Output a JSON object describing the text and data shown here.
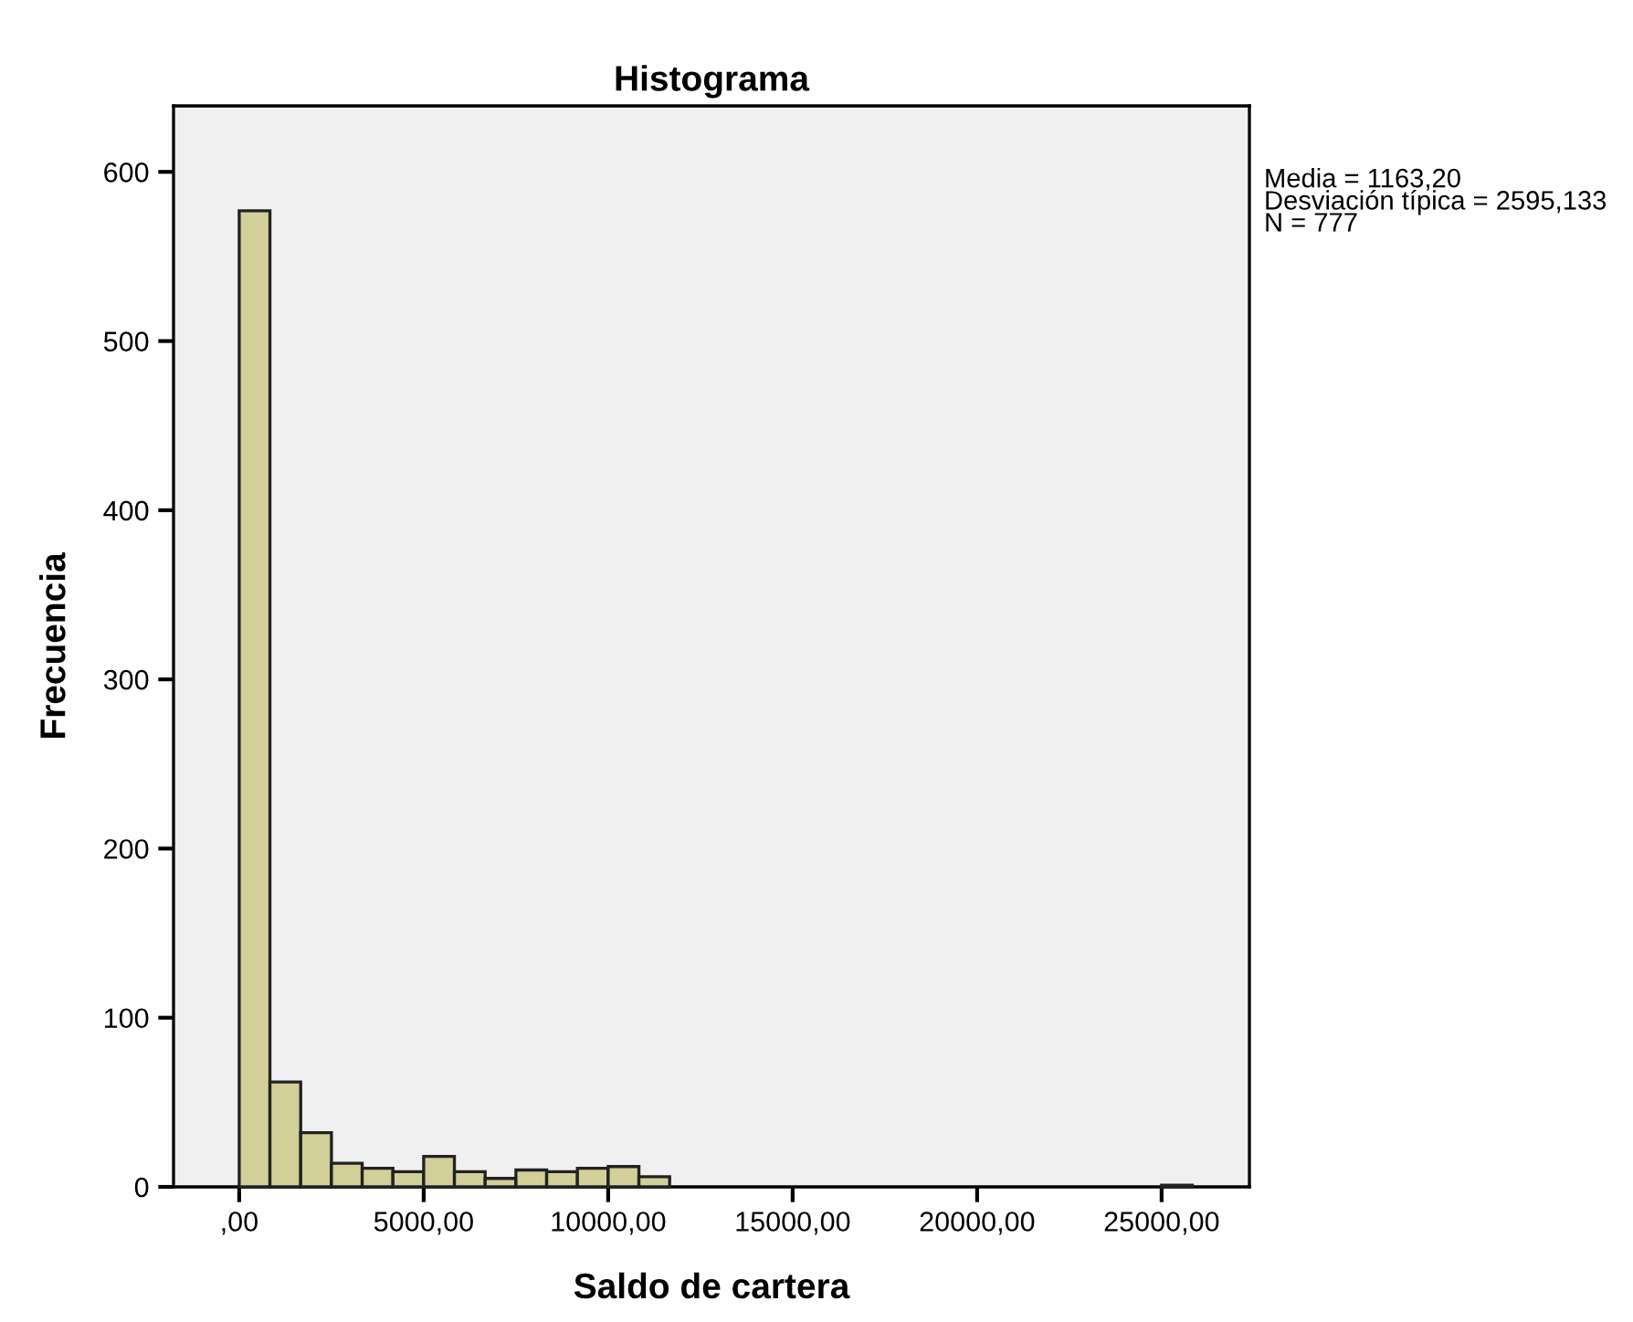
{
  "chart_data": {
    "type": "histogram",
    "title": "Histograma",
    "xlabel": "Saldo de cartera",
    "ylabel": "Frecuencia",
    "bins": [
      0,
      833.33,
      1666.67,
      2500,
      3333.33,
      4166.67,
      5000,
      5833.33,
      6666.67,
      7500,
      8333.33,
      9166.67,
      10000,
      10833.33,
      11666.67,
      12500,
      13333.33,
      14166.67,
      15000,
      15833.33,
      16666.67,
      17500,
      18333.33,
      19166.67,
      20000,
      20833.33,
      21666.67,
      22500,
      23333.33,
      24166.67,
      25000,
      25833.33
    ],
    "values": [
      577,
      62,
      32,
      14,
      11,
      9,
      18,
      9,
      5,
      10,
      9,
      11,
      12,
      6,
      0,
      0,
      0,
      0,
      0,
      0,
      0,
      0,
      0,
      0,
      0,
      0,
      0,
      0,
      0,
      0,
      1
    ],
    "color": "#d3cf99",
    "xlim": [
      -1780,
      27380
    ],
    "ylim": [
      0,
      639
    ],
    "xticks": [
      {
        "value": 0,
        "label": ",00"
      },
      {
        "value": 5000,
        "label": "5000,00"
      },
      {
        "value": 10000,
        "label": "10000,00"
      },
      {
        "value": 15000,
        "label": "15000,00"
      },
      {
        "value": 20000,
        "label": "20000,00"
      },
      {
        "value": 25000,
        "label": "25000,00"
      }
    ],
    "yticks": [
      0,
      100,
      200,
      300,
      400,
      500,
      600
    ],
    "grid": false,
    "legend": false,
    "annotations": [
      "Media = 1163,20\nDesviación típica = 2595,133\nN = 777"
    ]
  }
}
